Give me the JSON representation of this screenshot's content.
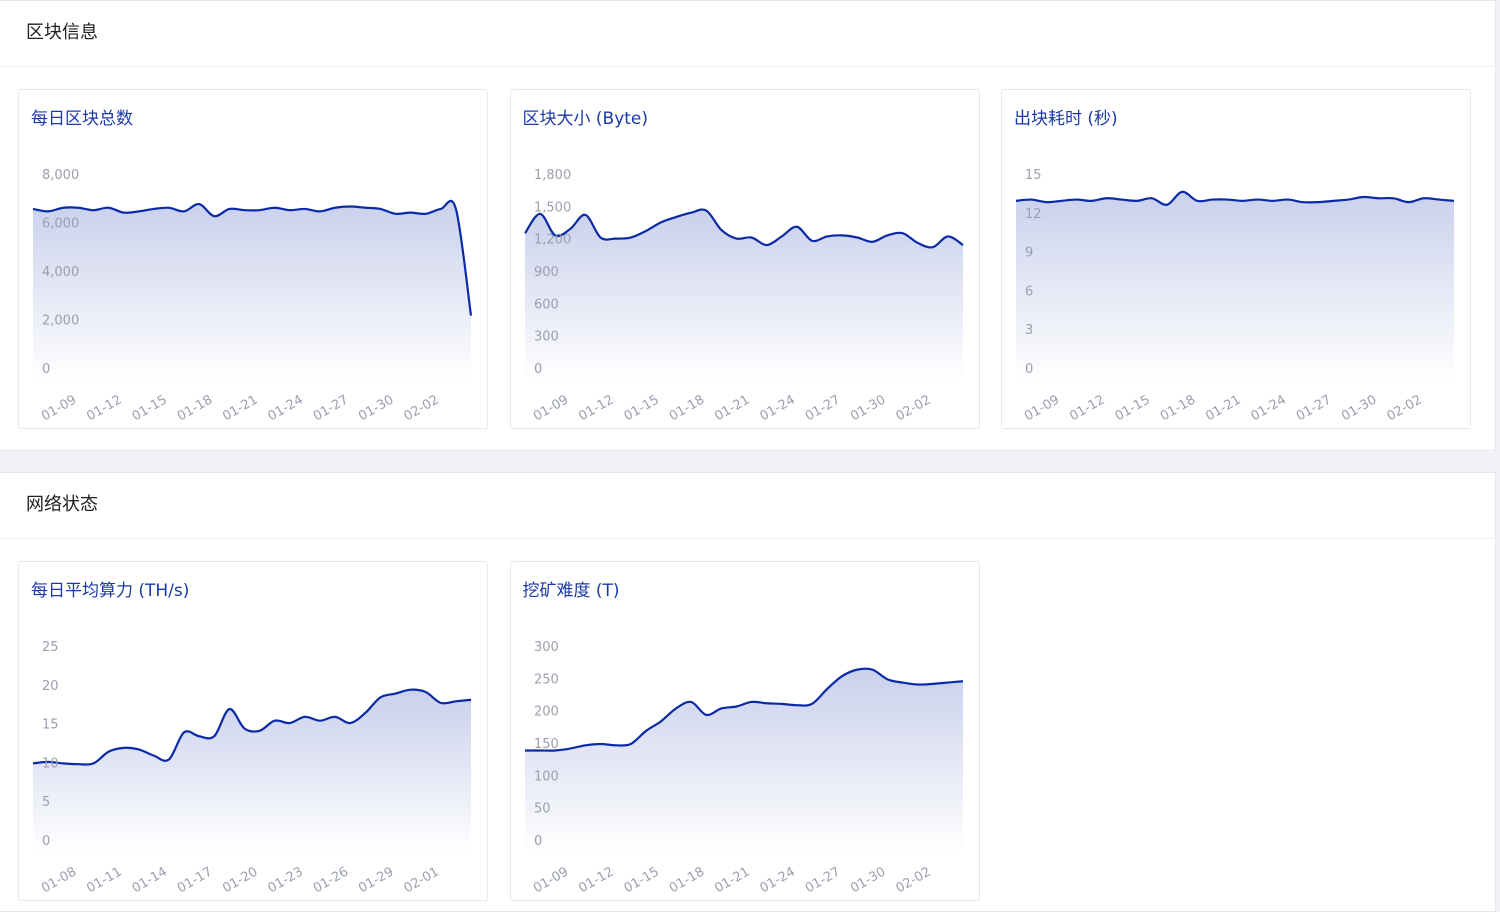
{
  "sections": [
    {
      "title": "区块信息"
    },
    {
      "title": "网络状态"
    }
  ],
  "chart_data": [
    {
      "type": "line",
      "title": "每日区块总数",
      "color": "#0a2aa6",
      "categories": [
        null,
        null,
        "01-09",
        null,
        null,
        "01-12",
        null,
        null,
        "01-15",
        null,
        null,
        "01-18",
        null,
        null,
        "01-21",
        null,
        null,
        "01-24",
        null,
        null,
        "01-27",
        null,
        null,
        "01-30",
        null,
        null,
        "02-02",
        null,
        null,
        null
      ],
      "values": [
        6600,
        6500,
        6650,
        6650,
        6550,
        6650,
        6450,
        6500,
        6600,
        6650,
        6500,
        6800,
        6300,
        6600,
        6550,
        6550,
        6650,
        6550,
        6600,
        6500,
        6650,
        6700,
        6650,
        6600,
        6400,
        6450,
        6400,
        6600,
        6600,
        2200
      ],
      "ylim": [
        0,
        8000
      ],
      "yticks": [
        0,
        {
          "value": 2000,
          "label": "2,000"
        },
        {
          "value": 4000,
          "label": "4,000"
        },
        {
          "value": 6000,
          "label": "6,000"
        },
        {
          "value": 8000,
          "label": "8,000"
        }
      ]
    },
    {
      "type": "line",
      "title": "区块大小 (Byte)",
      "color": "#0a2aa6",
      "categories": [
        null,
        null,
        "01-09",
        null,
        null,
        "01-12",
        null,
        null,
        "01-15",
        null,
        null,
        "01-18",
        null,
        null,
        "01-21",
        null,
        null,
        "01-24",
        null,
        null,
        "01-27",
        null,
        null,
        "01-30",
        null,
        null,
        "02-02",
        null,
        null,
        null
      ],
      "values": [
        1260,
        1440,
        1240,
        1300,
        1430,
        1220,
        1210,
        1220,
        1280,
        1360,
        1410,
        1450,
        1470,
        1290,
        1210,
        1220,
        1150,
        1230,
        1320,
        1190,
        1230,
        1240,
        1220,
        1180,
        1240,
        1260,
        1170,
        1130,
        1230,
        1150
      ],
      "ylim": [
        0,
        1800
      ],
      "yticks": [
        0,
        300,
        600,
        900,
        {
          "value": 1200,
          "label": "1,200"
        },
        {
          "value": 1500,
          "label": "1,500"
        },
        {
          "value": 1800,
          "label": "1,800"
        }
      ]
    },
    {
      "type": "line",
      "title": "出块耗时 (秒)",
      "color": "#0a2aa6",
      "categories": [
        null,
        null,
        "01-09",
        null,
        null,
        "01-12",
        null,
        null,
        "01-15",
        null,
        null,
        "01-18",
        null,
        null,
        "01-21",
        null,
        null,
        "01-24",
        null,
        null,
        "01-27",
        null,
        null,
        "01-30",
        null,
        null,
        "02-02",
        null,
        null,
        null
      ],
      "values": [
        13.0,
        13.1,
        12.9,
        13.0,
        13.1,
        13.0,
        13.2,
        13.1,
        13.0,
        13.2,
        12.7,
        13.7,
        13.0,
        13.1,
        13.1,
        13.0,
        13.1,
        13.0,
        13.1,
        12.9,
        12.9,
        13.0,
        13.1,
        13.3,
        13.2,
        13.2,
        12.9,
        13.2,
        13.1,
        13.0
      ],
      "ylim": [
        0,
        15
      ],
      "yticks": [
        0,
        3,
        6,
        9,
        12,
        15
      ]
    },
    {
      "type": "line",
      "title": "每日平均算力 (TH/s)",
      "color": "#0a2aa6",
      "categories": [
        null,
        null,
        "01-08",
        null,
        null,
        "01-11",
        null,
        null,
        "01-14",
        null,
        null,
        "01-17",
        null,
        null,
        "01-20",
        null,
        null,
        "01-23",
        null,
        null,
        "01-26",
        null,
        null,
        "01-29",
        null,
        null,
        "02-01",
        null,
        null,
        null
      ],
      "values": [
        10,
        10.2,
        10,
        9.9,
        10,
        11.5,
        12,
        11.8,
        11,
        10.5,
        14,
        13.5,
        13.5,
        17,
        14.5,
        14.2,
        15.5,
        15.2,
        16,
        15.5,
        16,
        15.2,
        16.5,
        18.5,
        19,
        19.5,
        19.2,
        17.8,
        18,
        18.2
      ],
      "ylim": [
        0,
        25
      ],
      "yticks": [
        0,
        5,
        10,
        15,
        20,
        25
      ]
    },
    {
      "type": "line",
      "title": "挖矿难度 (T)",
      "color": "#0a2aa6",
      "categories": [
        null,
        null,
        "01-09",
        null,
        null,
        "01-12",
        null,
        null,
        "01-15",
        null,
        null,
        "01-18",
        null,
        null,
        "01-21",
        null,
        null,
        "01-24",
        null,
        null,
        "01-27",
        null,
        null,
        "01-30",
        null,
        null,
        "02-02",
        null,
        null,
        null
      ],
      "values": [
        140,
        140,
        140,
        143,
        148,
        150,
        148,
        150,
        170,
        185,
        205,
        215,
        195,
        205,
        208,
        215,
        213,
        212,
        210,
        212,
        235,
        255,
        265,
        265,
        250,
        245,
        242,
        243,
        245,
        247
      ],
      "ylim": [
        0,
        300
      ],
      "yticks": [
        0,
        50,
        100,
        150,
        200,
        250,
        300
      ]
    }
  ]
}
